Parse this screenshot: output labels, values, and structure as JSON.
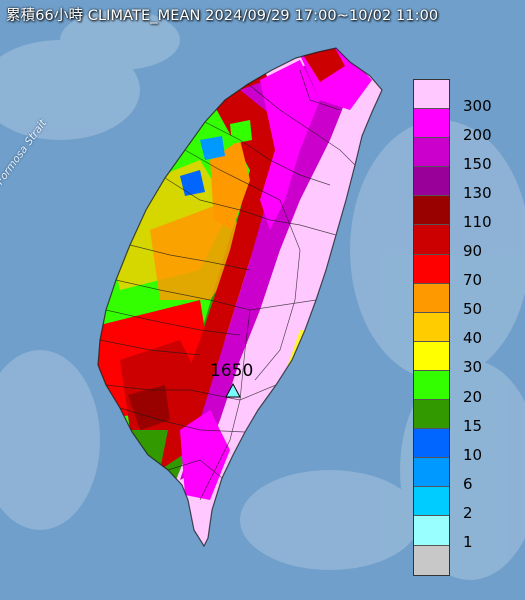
{
  "title": "累積66小時 CLIMATE_MEAN 2024/09/29 17:00~10/02 11:00",
  "sea_label": "Formosa Strait",
  "max_station": {
    "value": "1650",
    "marker": "triangle-marker"
  },
  "legend": {
    "classes": [
      {
        "label": "300",
        "color": "#ffc8ff"
      },
      {
        "label": "200",
        "color": "#ff00ff"
      },
      {
        "label": "150",
        "color": "#cc00cc"
      },
      {
        "label": "130",
        "color": "#990099"
      },
      {
        "label": "110",
        "color": "#990000"
      },
      {
        "label": "90",
        "color": "#cc0000"
      },
      {
        "label": "70",
        "color": "#ff0000"
      },
      {
        "label": "50",
        "color": "#ff9900"
      },
      {
        "label": "40",
        "color": "#ffcc00"
      },
      {
        "label": "30",
        "color": "#ffff00"
      },
      {
        "label": "20",
        "color": "#33ff00"
      },
      {
        "label": "15",
        "color": "#339900"
      },
      {
        "label": "10",
        "color": "#0066ff"
      },
      {
        "label": "6",
        "color": "#0099ff"
      },
      {
        "label": "2",
        "color": "#00ccff"
      },
      {
        "label": "1",
        "color": "#99ffff"
      },
      {
        "label": "",
        "color": "#c8c8c8"
      }
    ]
  }
}
